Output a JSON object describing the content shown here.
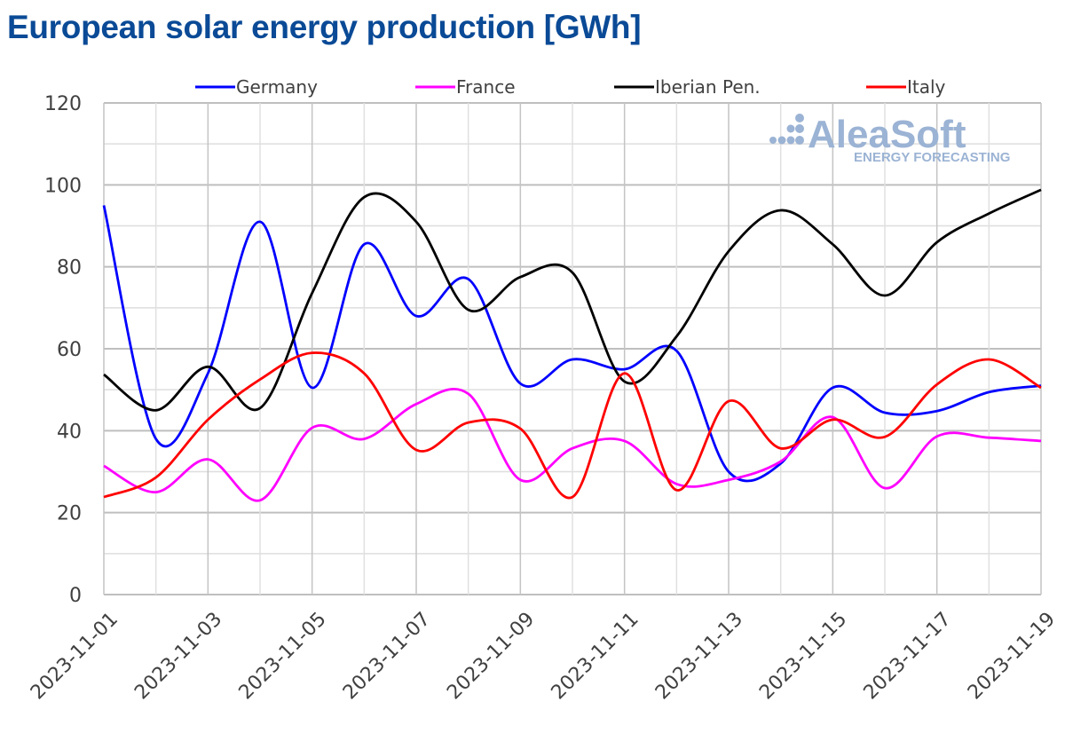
{
  "chart_data": {
    "type": "line",
    "title": "European solar energy production [GWh]",
    "xlabel": "",
    "ylabel": "",
    "ylim": [
      0,
      120
    ],
    "yticks": [
      0,
      20,
      40,
      60,
      80,
      100,
      120
    ],
    "grid": true,
    "legend_position": "top",
    "x": [
      "2023-11-01",
      "2023-11-02",
      "2023-11-03",
      "2023-11-04",
      "2023-11-05",
      "2023-11-06",
      "2023-11-07",
      "2023-11-08",
      "2023-11-09",
      "2023-11-10",
      "2023-11-11",
      "2023-11-12",
      "2023-11-13",
      "2023-11-14",
      "2023-11-15",
      "2023-11-16",
      "2023-11-17",
      "2023-11-18",
      "2023-11-19"
    ],
    "xtick_labels": [
      "2023-11-01",
      "2023-11-03",
      "2023-11-05",
      "2023-11-07",
      "2023-11-09",
      "2023-11-11",
      "2023-11-13",
      "2023-11-15",
      "2023-11-17",
      "2023-11-19"
    ],
    "series": [
      {
        "name": "Germany",
        "color": "#0000ff",
        "values": [
          95,
          38,
          54,
          91,
          50.5,
          85.5,
          68,
          77,
          51.5,
          57.4,
          55,
          59.5,
          30,
          32,
          50.5,
          44.4,
          44.8,
          49.4,
          51
        ]
      },
      {
        "name": "France",
        "color": "#ff00ff",
        "values": [
          31.4,
          25,
          33,
          23,
          40.7,
          38,
          46.5,
          49,
          28,
          35.7,
          37.5,
          27,
          28,
          32.5,
          43.3,
          26,
          38.6,
          38.3,
          37.5
        ]
      },
      {
        "name": "Iberian Pen.",
        "color": "#000000",
        "values": [
          53.7,
          45,
          55.6,
          45.5,
          73.6,
          97,
          91,
          69.5,
          77.5,
          78.6,
          52,
          63,
          83.8,
          93.8,
          85.5,
          73,
          86,
          93,
          98.8
        ]
      },
      {
        "name": "Italy",
        "color": "#ff0000",
        "values": [
          23.8,
          28.6,
          42.7,
          52.5,
          59,
          54,
          35.3,
          42,
          40.5,
          23.8,
          54,
          25.5,
          47.2,
          35.7,
          42.7,
          38.5,
          51.3,
          57.4,
          50.5
        ]
      }
    ]
  },
  "watermark": {
    "brand": "AleaSoft",
    "tagline": "ENERGY FORECASTING"
  }
}
